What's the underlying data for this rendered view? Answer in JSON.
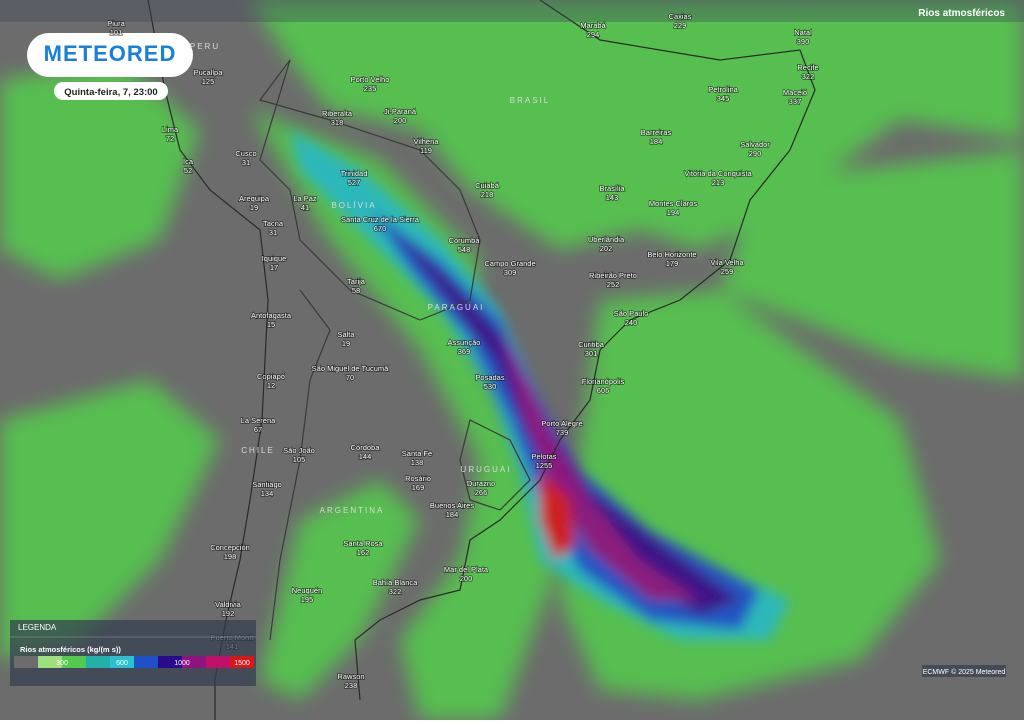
{
  "header": {
    "logo": "METEORED",
    "datetime": "Quinta-feira, 7, 23:00",
    "layer": "Rios atmosféricos"
  },
  "countries": [
    "PERU",
    "BRASIL",
    "BOLÍVIA",
    "PARAGUAI",
    "URUGUAI",
    "ARGENTINA",
    "CHILE"
  ],
  "cities": [
    {
      "name": "Piura",
      "value": "101"
    },
    {
      "name": "Marabá",
      "value": "294"
    },
    {
      "name": "Caxias",
      "value": "229"
    },
    {
      "name": "Natal",
      "value": "390"
    },
    {
      "name": "Recife",
      "value": "322"
    },
    {
      "name": "Maceió",
      "value": "337"
    },
    {
      "name": "Pucallpa",
      "value": "125"
    },
    {
      "name": "Porto Velho",
      "value": "235"
    },
    {
      "name": "Ji-Paraná",
      "value": "200"
    },
    {
      "name": "Riberalta",
      "value": "318"
    },
    {
      "name": "Petrolina",
      "value": "345"
    },
    {
      "name": "Barreiras",
      "value": "184"
    },
    {
      "name": "Salvador",
      "value": "290"
    },
    {
      "name": "Lima",
      "value": "72"
    },
    {
      "name": "Cusco",
      "value": "31"
    },
    {
      "name": "Ica",
      "value": "52"
    },
    {
      "name": "Vilhena",
      "value": "119"
    },
    {
      "name": "Trinidad",
      "value": "527"
    },
    {
      "name": "Cuiabá",
      "value": "218"
    },
    {
      "name": "Vitória da Conquista",
      "value": "213"
    },
    {
      "name": "Brasília",
      "value": "143"
    },
    {
      "name": "Arequipa",
      "value": "19"
    },
    {
      "name": "La Paz",
      "value": "41"
    },
    {
      "name": "Montes Claros",
      "value": "194"
    },
    {
      "name": "Santa Cruz de la Sierra",
      "value": "670"
    },
    {
      "name": "Tacna",
      "value": "31"
    },
    {
      "name": "Corumbá",
      "value": "548"
    },
    {
      "name": "Uberlândia",
      "value": "202"
    },
    {
      "name": "Belo Horizonte",
      "value": "179"
    },
    {
      "name": "Vila Velha",
      "value": "259"
    },
    {
      "name": "Campo Grande",
      "value": "309"
    },
    {
      "name": "Iquique",
      "value": "17"
    },
    {
      "name": "Ribeirão Preto",
      "value": "252"
    },
    {
      "name": "Tarija",
      "value": "58"
    },
    {
      "name": "Antofagasta",
      "value": "15"
    },
    {
      "name": "São Paulo",
      "value": "240"
    },
    {
      "name": "Salta",
      "value": "19"
    },
    {
      "name": "Assunção",
      "value": "369"
    },
    {
      "name": "Curitiba",
      "value": "301"
    },
    {
      "name": "São Miguel de Tucumã",
      "value": "70"
    },
    {
      "name": "Copiapó",
      "value": "12"
    },
    {
      "name": "Posadas",
      "value": "530"
    },
    {
      "name": "Florianópolis",
      "value": "606"
    },
    {
      "name": "Porto Alegre",
      "value": "739"
    },
    {
      "name": "La Serena",
      "value": "67"
    },
    {
      "name": "São João",
      "value": "105"
    },
    {
      "name": "Córdoba",
      "value": "144"
    },
    {
      "name": "Santa Fe",
      "value": "138"
    },
    {
      "name": "Pelotas",
      "value": "1255"
    },
    {
      "name": "Rosário",
      "value": "169"
    },
    {
      "name": "Durazno",
      "value": "266"
    },
    {
      "name": "Santiago",
      "value": "134"
    },
    {
      "name": "Buenos Aires",
      "value": "184"
    },
    {
      "name": "Concepción",
      "value": "198"
    },
    {
      "name": "Santa Rosa",
      "value": "162"
    },
    {
      "name": "Mar del Plata",
      "value": "200"
    },
    {
      "name": "Bahía Blanca",
      "value": "322"
    },
    {
      "name": "Neuquén",
      "value": "195"
    },
    {
      "name": "Valdivia",
      "value": "192"
    },
    {
      "name": "Puerto Montt",
      "value": "141"
    },
    {
      "name": "Rawson",
      "value": "238"
    }
  ],
  "legend": {
    "title": "LEGENDA",
    "label": "Rios atmosféricos (kg/(m s))",
    "ticks": [
      "300",
      "600",
      "1000",
      "1500"
    ]
  },
  "credit": "ECMWF © 2025 Meteored"
}
